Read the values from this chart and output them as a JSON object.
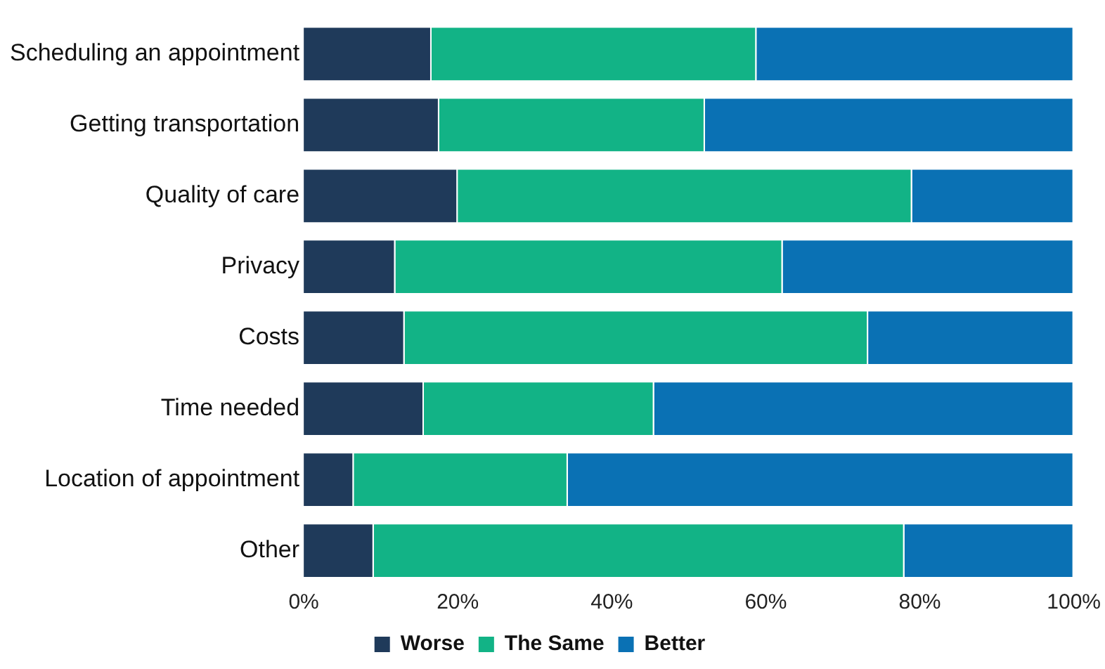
{
  "chart_data": {
    "type": "bar",
    "orientation": "horizontal",
    "stacked": true,
    "categories": [
      "Scheduling an appointment",
      "Getting transportation",
      "Quality of care",
      "Privacy",
      "Costs",
      "Time needed",
      "Location of appointment",
      "Other"
    ],
    "series": [
      {
        "name": "Worse",
        "color": "#1f3a5a",
        "values": [
          16.6,
          17.6,
          20,
          11.9,
          13.1,
          15.6,
          6.5,
          9.1
        ]
      },
      {
        "name": "The Same",
        "color": "#12b386",
        "values": [
          42.2,
          34.5,
          59,
          50.3,
          60.2,
          29.9,
          27.8,
          68.9
        ]
      },
      {
        "name": "Better",
        "color": "#0a71b4",
        "values": [
          41.2,
          47.9,
          21,
          37.8,
          26.7,
          54.5,
          65.7,
          22
        ]
      }
    ],
    "xlim": [
      0,
      100
    ],
    "xticks": [
      {
        "value": 0,
        "label": "0%"
      },
      {
        "value": 20,
        "label": "20%"
      },
      {
        "value": 40,
        "label": "40%"
      },
      {
        "value": 60,
        "label": "60%"
      },
      {
        "value": 80,
        "label": "80%"
      },
      {
        "value": 100,
        "label": "100%"
      }
    ],
    "grid": false,
    "legend": "bottom"
  }
}
